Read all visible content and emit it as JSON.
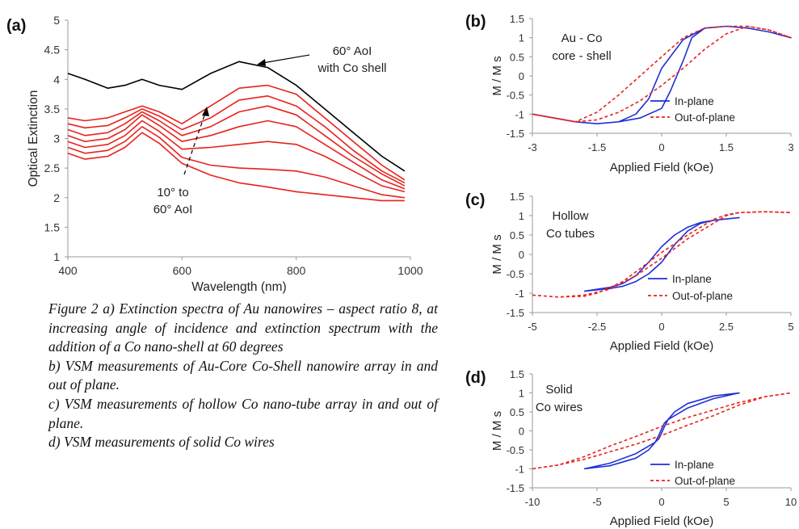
{
  "chart_data": [
    {
      "panel": "(a)",
      "type": "line",
      "xlabel": "Wavelength (nm)",
      "ylabel": "Optical Extinction",
      "xlim": [
        400,
        1000
      ],
      "ylim": [
        1,
        5
      ],
      "xticks": [
        "400",
        "600",
        "800",
        "1000"
      ],
      "yticks": [
        "1",
        "1.5",
        "2",
        "2.5",
        "3",
        "3.5",
        "4",
        "4.5",
        "5"
      ],
      "annotations": [
        "60° AoI\nwith Co shell",
        "10° to\n60° AoI"
      ],
      "series": [
        {
          "color": "#000000",
          "x": [
            400,
            430,
            470,
            500,
            530,
            560,
            600,
            650,
            700,
            750,
            800,
            850,
            900,
            950,
            990
          ],
          "y": [
            4.1,
            4.0,
            3.85,
            3.9,
            4.0,
            3.9,
            3.83,
            4.1,
            4.3,
            4.2,
            3.9,
            3.5,
            3.1,
            2.7,
            2.45
          ]
        },
        {
          "color": "#e8221d",
          "x": [
            400,
            430,
            470,
            500,
            530,
            560,
            600,
            650,
            700,
            750,
            800,
            850,
            900,
            950,
            990
          ],
          "y": [
            3.35,
            3.3,
            3.35,
            3.45,
            3.55,
            3.45,
            3.25,
            3.55,
            3.85,
            3.9,
            3.75,
            3.35,
            2.95,
            2.55,
            2.3
          ]
        },
        {
          "color": "#e8221d",
          "x": [
            400,
            430,
            470,
            500,
            530,
            560,
            600,
            650,
            700,
            750,
            800,
            850,
            900,
            950,
            990
          ],
          "y": [
            3.25,
            3.18,
            3.22,
            3.35,
            3.5,
            3.38,
            3.15,
            3.35,
            3.65,
            3.72,
            3.55,
            3.2,
            2.8,
            2.45,
            2.25
          ]
        },
        {
          "color": "#e8221d",
          "x": [
            400,
            430,
            470,
            500,
            530,
            560,
            600,
            650,
            700,
            750,
            800,
            850,
            900,
            950,
            990
          ],
          "y": [
            3.15,
            3.05,
            3.1,
            3.25,
            3.45,
            3.3,
            3.05,
            3.2,
            3.45,
            3.55,
            3.4,
            3.05,
            2.7,
            2.4,
            2.2
          ]
        },
        {
          "color": "#e8221d",
          "x": [
            400,
            430,
            470,
            500,
            530,
            560,
            600,
            650,
            700,
            750,
            800,
            850,
            900,
            950,
            990
          ],
          "y": [
            3.05,
            2.95,
            3.0,
            3.15,
            3.4,
            3.22,
            2.95,
            3.05,
            3.2,
            3.3,
            3.2,
            2.9,
            2.6,
            2.3,
            2.15
          ]
        },
        {
          "color": "#e8221d",
          "x": [
            400,
            430,
            470,
            500,
            530,
            560,
            600,
            650,
            700,
            750,
            800,
            850,
            900,
            950,
            990
          ],
          "y": [
            2.95,
            2.85,
            2.9,
            3.05,
            3.3,
            3.12,
            2.82,
            2.85,
            2.9,
            2.95,
            2.9,
            2.7,
            2.45,
            2.2,
            2.1
          ]
        },
        {
          "color": "#e8221d",
          "x": [
            400,
            430,
            470,
            500,
            530,
            560,
            600,
            650,
            700,
            750,
            800,
            850,
            900,
            950,
            990
          ],
          "y": [
            2.85,
            2.75,
            2.8,
            2.95,
            3.2,
            3.02,
            2.68,
            2.55,
            2.5,
            2.48,
            2.45,
            2.35,
            2.2,
            2.05,
            2.0
          ]
        },
        {
          "color": "#e8221d",
          "x": [
            400,
            430,
            470,
            500,
            530,
            560,
            600,
            650,
            700,
            750,
            800,
            850,
            900,
            950,
            990
          ],
          "y": [
            2.75,
            2.65,
            2.7,
            2.85,
            3.1,
            2.92,
            2.58,
            2.38,
            2.25,
            2.18,
            2.1,
            2.05,
            2.0,
            1.95,
            1.95
          ]
        }
      ]
    },
    {
      "panel": "(b)",
      "type": "line",
      "xlabel": "Applied Field (kOe)",
      "ylabel": "M / M s",
      "xlim": [
        -3,
        3
      ],
      "ylim": [
        -1.5,
        1.5
      ],
      "xticks": [
        "-3",
        "-1.5",
        "0",
        "1.5",
        "3"
      ],
      "yticks": [
        "-1.5",
        "-1",
        "-0.5",
        "0",
        "0.5",
        "1",
        "1.5"
      ],
      "annotations": [
        "Au - Co\ncore - shell"
      ],
      "legend": [
        "In-plane",
        "Out-of-plane"
      ],
      "legend_position": "bottom-right",
      "series": [
        {
          "name": "In-plane",
          "color": "#1f2fd6",
          "style": "solid",
          "x": [
            -3,
            -2.5,
            -2,
            -1.5,
            -1,
            -0.6,
            -0.3,
            0,
            0.5,
            1,
            1.5,
            2,
            2.5,
            3,
            2.5,
            2,
            1.5,
            1,
            0.7,
            0.5,
            0.2,
            0,
            -0.5,
            -1,
            -1.5,
            -2,
            -2.5,
            -3
          ],
          "y": [
            -1.0,
            -1.1,
            -1.2,
            -1.25,
            -1.2,
            -1.0,
            -0.6,
            0.2,
            0.95,
            1.25,
            1.3,
            1.25,
            1.15,
            1.0,
            1.15,
            1.25,
            1.3,
            1.25,
            1.0,
            0.4,
            -0.4,
            -0.85,
            -1.1,
            -1.2,
            -1.25,
            -1.2,
            -1.1,
            -1.0
          ]
        },
        {
          "name": "Out-of-plane",
          "color": "#e8221d",
          "style": "dashed",
          "x": [
            -3,
            -2.5,
            -2,
            -1.5,
            -1,
            -0.5,
            0,
            0.5,
            1,
            1.5,
            2,
            2.5,
            3,
            2.5,
            2,
            1.5,
            1,
            0.5,
            0,
            -0.5,
            -1,
            -1.5,
            -2,
            -2.5,
            -3
          ],
          "y": [
            -1.0,
            -1.1,
            -1.2,
            -1.15,
            -0.95,
            -0.65,
            -0.25,
            0.2,
            0.7,
            1.1,
            1.3,
            1.2,
            1.0,
            1.2,
            1.3,
            1.3,
            1.25,
            1.0,
            0.5,
            0.0,
            -0.5,
            -0.95,
            -1.2,
            -1.1,
            -1.0
          ]
        }
      ]
    },
    {
      "panel": "(c)",
      "type": "line",
      "xlabel": "Applied Field (kOe)",
      "ylabel": "M / M s",
      "xlim": [
        -5,
        5
      ],
      "ylim": [
        -1.5,
        1.5
      ],
      "xticks": [
        "-5",
        "-2.5",
        "0",
        "2.5",
        "5"
      ],
      "yticks": [
        "-1.5",
        "-1",
        "-0.5",
        "0",
        "0.5",
        "1",
        "1.5"
      ],
      "annotations": [
        "Hollow\nCo tubes"
      ],
      "legend": [
        "In-plane",
        "Out-of-plane"
      ],
      "legend_position": "bottom-right",
      "series": [
        {
          "name": "In-plane",
          "color": "#1f2fd6",
          "style": "solid",
          "x": [
            -3,
            -2.5,
            -2,
            -1.5,
            -1,
            -0.5,
            0,
            0.5,
            1,
            1.5,
            2,
            3,
            2,
            1.5,
            1,
            0.5,
            0,
            -0.5,
            -1,
            -1.5,
            -2,
            -3
          ],
          "y": [
            -0.95,
            -0.9,
            -0.85,
            -0.75,
            -0.55,
            -0.2,
            0.2,
            0.5,
            0.7,
            0.82,
            0.88,
            0.95,
            0.88,
            0.8,
            0.6,
            0.25,
            -0.2,
            -0.5,
            -0.7,
            -0.82,
            -0.88,
            -0.95
          ]
        },
        {
          "name": "Out-of-plane",
          "color": "#e8221d",
          "style": "dashed",
          "x": [
            -5,
            -4,
            -3,
            -2.5,
            -2,
            -1.5,
            -1,
            0,
            1,
            2,
            2.5,
            3,
            4,
            5,
            4,
            3,
            2.5,
            2,
            1,
            0,
            -1,
            -2,
            -3,
            -4,
            -5
          ],
          "y": [
            -1.05,
            -1.1,
            -1.08,
            -1.0,
            -0.85,
            -0.7,
            -0.45,
            0.05,
            0.5,
            0.9,
            1.02,
            1.08,
            1.1,
            1.08,
            1.1,
            1.08,
            1.0,
            0.8,
            0.4,
            -0.1,
            -0.55,
            -0.9,
            -1.05,
            -1.1,
            -1.05
          ]
        }
      ]
    },
    {
      "panel": "(d)",
      "type": "line",
      "xlabel": "Applied Field (kOe)",
      "ylabel": "M / M s",
      "xlim": [
        -10,
        10
      ],
      "ylim": [
        -1.5,
        1.5
      ],
      "xticks": [
        "-10",
        "-5",
        "0",
        "5",
        "10"
      ],
      "yticks": [
        "-1.5",
        "-1",
        "-0.5",
        "0",
        "0.5",
        "1",
        "1.5"
      ],
      "annotations": [
        "Solid\nCo wires"
      ],
      "legend": [
        "In-plane",
        "Out-of-plane"
      ],
      "legend_position": "bottom-right",
      "series": [
        {
          "name": "In-plane",
          "color": "#1f2fd6",
          "style": "solid",
          "x": [
            -6,
            -4,
            -2,
            -1,
            -0.5,
            -0.2,
            0,
            0.2,
            0.5,
            1,
            2,
            4,
            6,
            4,
            2,
            1,
            0.5,
            0.2,
            0,
            -0.2,
            -0.5,
            -1,
            -2,
            -4,
            -6
          ],
          "y": [
            -1.0,
            -0.92,
            -0.72,
            -0.5,
            -0.3,
            -0.1,
            0.05,
            0.2,
            0.3,
            0.4,
            0.6,
            0.85,
            1.0,
            0.92,
            0.72,
            0.5,
            0.3,
            0.1,
            -0.05,
            -0.2,
            -0.3,
            -0.4,
            -0.6,
            -0.85,
            -1.0
          ]
        },
        {
          "name": "Out-of-plane",
          "color": "#e8221d",
          "style": "dashed",
          "x": [
            -10,
            -8,
            -6,
            -4,
            -2,
            0,
            2,
            4,
            6,
            8,
            10,
            8,
            6,
            4,
            2,
            0,
            -2,
            -4,
            -6,
            -8,
            -10
          ],
          "y": [
            -1.0,
            -0.9,
            -0.75,
            -0.55,
            -0.35,
            -0.12,
            0.15,
            0.4,
            0.68,
            0.9,
            1.0,
            0.9,
            0.75,
            0.55,
            0.35,
            0.12,
            -0.15,
            -0.4,
            -0.68,
            -0.9,
            -1.0
          ]
        }
      ]
    }
  ],
  "caption": {
    "line_a": "Figure 2 a) Extinction spectra of Au nanowires – aspect ratio 8, at increasing angle of incidence and extinction spectrum with the addition of a Co nano-shell at 60 degrees",
    "line_b": "b) VSM measurements of Au-Core Co-Shell nanowire array in and out of plane.",
    "line_c": "c) VSM measurements of hollow Co nano-tube array in and out of plane.",
    "line_d": "d) VSM measurements of solid Co wires"
  }
}
